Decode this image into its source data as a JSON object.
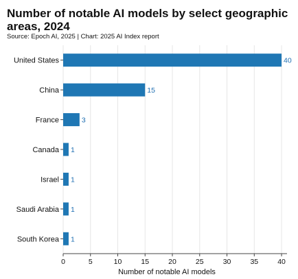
{
  "chart_data": {
    "type": "bar",
    "orientation": "horizontal",
    "title": "Number of notable AI models by select geographic areas, 2024",
    "subtitle": "Source: Epoch AI, 2025 | Chart: 2025 AI Index report",
    "categories": [
      "United States",
      "China",
      "France",
      "Canada",
      "Israel",
      "Saudi Arabia",
      "South Korea"
    ],
    "values": [
      40,
      15,
      3,
      1,
      1,
      1,
      1
    ],
    "xlabel": "Number of notable AI models",
    "ylabel": "",
    "xlim": [
      0,
      41
    ],
    "xticks": [
      0,
      5,
      10,
      15,
      20,
      25,
      30,
      35,
      40
    ],
    "grid": true,
    "bar_color": "#1f77b4",
    "label_color": "#1f6fb2"
  }
}
